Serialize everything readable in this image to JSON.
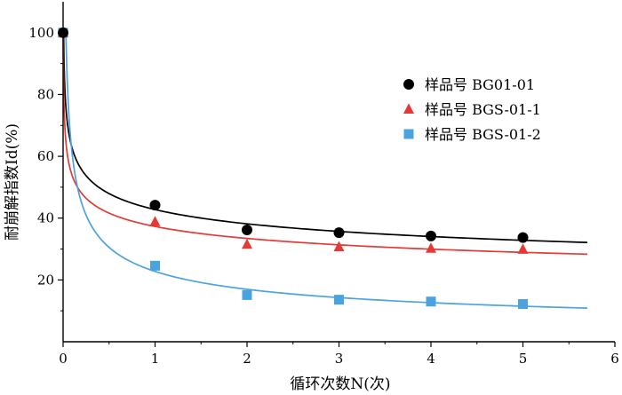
{
  "chart_data": {
    "type": "scatter",
    "xlabel": "循环次数N(次)",
    "ylabel": "耐崩解指数Id(%)",
    "xlim": [
      0,
      6
    ],
    "ylim": [
      0,
      110
    ],
    "xticks": [
      0,
      1,
      2,
      3,
      4,
      5,
      6
    ],
    "yticks": [
      20,
      40,
      60,
      80,
      100
    ],
    "grid": false,
    "legend_position": "top-right",
    "series": [
      {
        "name": "样品号 BG01-01",
        "marker": "circle",
        "color": "#000000",
        "line_color": "#000000",
        "x": [
          0,
          1,
          2,
          3,
          4,
          5
        ],
        "y": [
          100,
          44.2,
          36.2,
          35.3,
          34.2,
          33.7
        ]
      },
      {
        "name": "样品号 BGS-01-1",
        "marker": "triangle",
        "color": "#e53935",
        "line_color": "#e53935",
        "x": [
          0,
          1,
          2,
          3,
          4,
          5
        ],
        "y": [
          100,
          38.8,
          31.5,
          30.7,
          30.2,
          29.9
        ]
      },
      {
        "name": "样品号 BGS-01-2",
        "marker": "square",
        "color": "#4aa3df",
        "line_color": "#4aa3df",
        "x": [
          0,
          1,
          2,
          3,
          4,
          5
        ],
        "y": [
          100,
          24.6,
          15.1,
          13.6,
          13.0,
          12.2
        ]
      }
    ]
  }
}
